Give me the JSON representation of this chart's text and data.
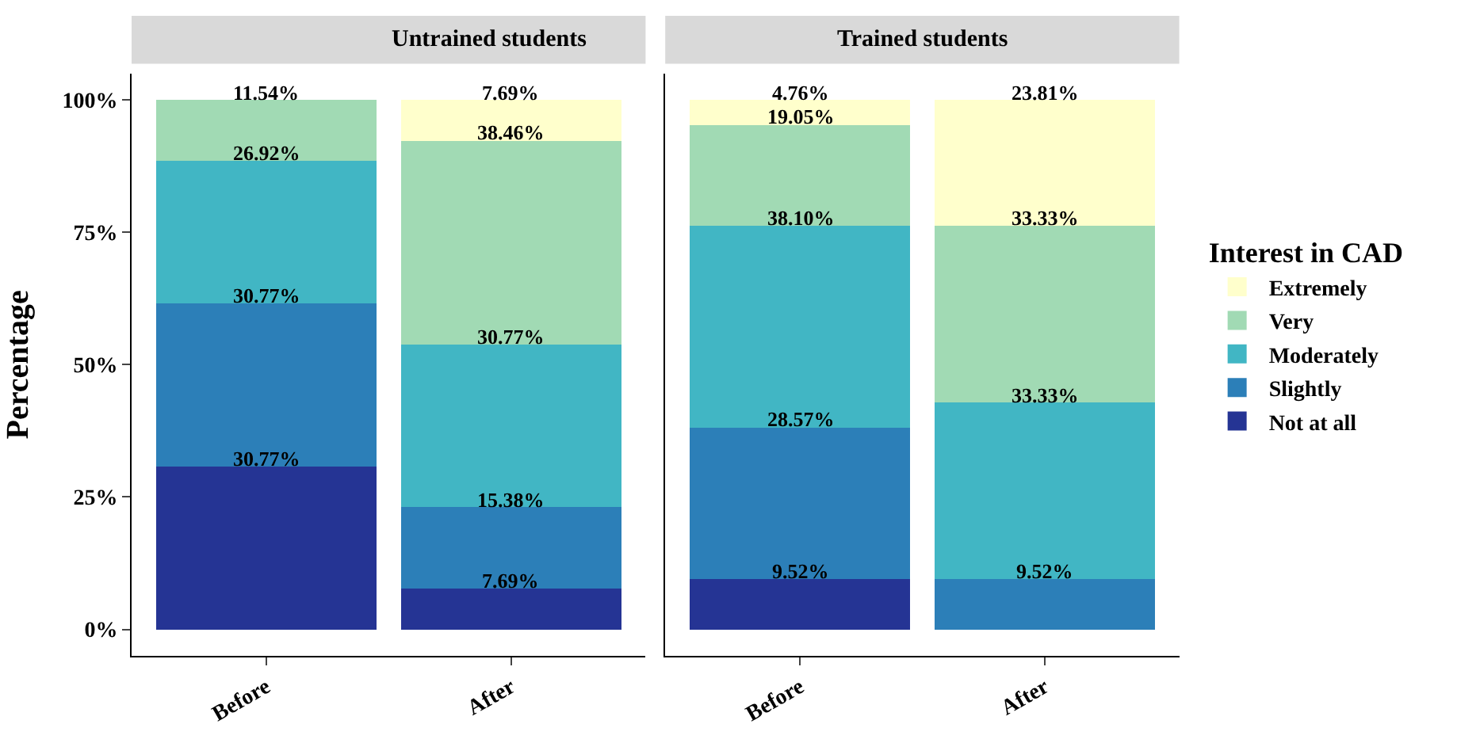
{
  "chart_data": [
    {
      "type": "bar",
      "title": "Untrained students",
      "ylabel": "Percentage",
      "categories": [
        "Before",
        "After"
      ],
      "stacked": true,
      "legend": "right",
      "legend_title": "Interest in CAD",
      "ylim": [
        -5,
        105
      ],
      "yticks": [
        {
          "value": 0,
          "label": "0%"
        },
        {
          "value": 25,
          "label": "25%"
        },
        {
          "value": 50,
          "label": "50%"
        },
        {
          "value": 75,
          "label": "75%"
        },
        {
          "value": 100,
          "label": "100%"
        }
      ],
      "series": [
        {
          "name": "Not at all",
          "color": "#253494",
          "values": [
            30.77,
            7.69
          ],
          "value_labels": [
            "30.77%",
            "7.69%"
          ]
        },
        {
          "name": "Slightly",
          "color": "#2c7fb8",
          "values": [
            30.77,
            15.38
          ],
          "value_labels": [
            "30.77%",
            "15.38%"
          ]
        },
        {
          "name": "Moderately",
          "color": "#41b6c4",
          "values": [
            26.92,
            30.77
          ],
          "value_labels": [
            "26.92%",
            "30.77%"
          ]
        },
        {
          "name": "Very",
          "color": "#a1dab4",
          "values": [
            11.54,
            38.46
          ],
          "value_labels": [
            "11.54%",
            "38.46%"
          ]
        },
        {
          "name": "Extremely",
          "color": "#ffffcc",
          "values": [
            0,
            7.69
          ],
          "value_labels": [
            null,
            "7.69%"
          ]
        }
      ]
    },
    {
      "type": "bar",
      "title": "Trained students",
      "categories": [
        "Before",
        "After"
      ],
      "stacked": true,
      "tick_labels": "x",
      "ylim": [
        -5,
        105
      ],
      "series": [
        {
          "color": "#253494",
          "values": [
            9.52,
            0
          ],
          "value_labels": [
            "9.52%",
            null
          ]
        },
        {
          "color": "#2c7fb8",
          "values": [
            28.57,
            9.52
          ],
          "value_labels": [
            "28.57%",
            "9.52%"
          ]
        },
        {
          "color": "#41b6c4",
          "values": [
            38.1,
            33.33
          ],
          "value_labels": [
            "38.10%",
            "33.33%"
          ]
        },
        {
          "color": "#a1dab4",
          "values": [
            19.05,
            33.33
          ],
          "value_labels": [
            "19.05%",
            "33.33%"
          ]
        },
        {
          "color": "#ffffcc",
          "values": [
            4.76,
            23.81
          ],
          "value_labels": [
            "4.76%",
            "23.81%"
          ]
        }
      ]
    }
  ]
}
